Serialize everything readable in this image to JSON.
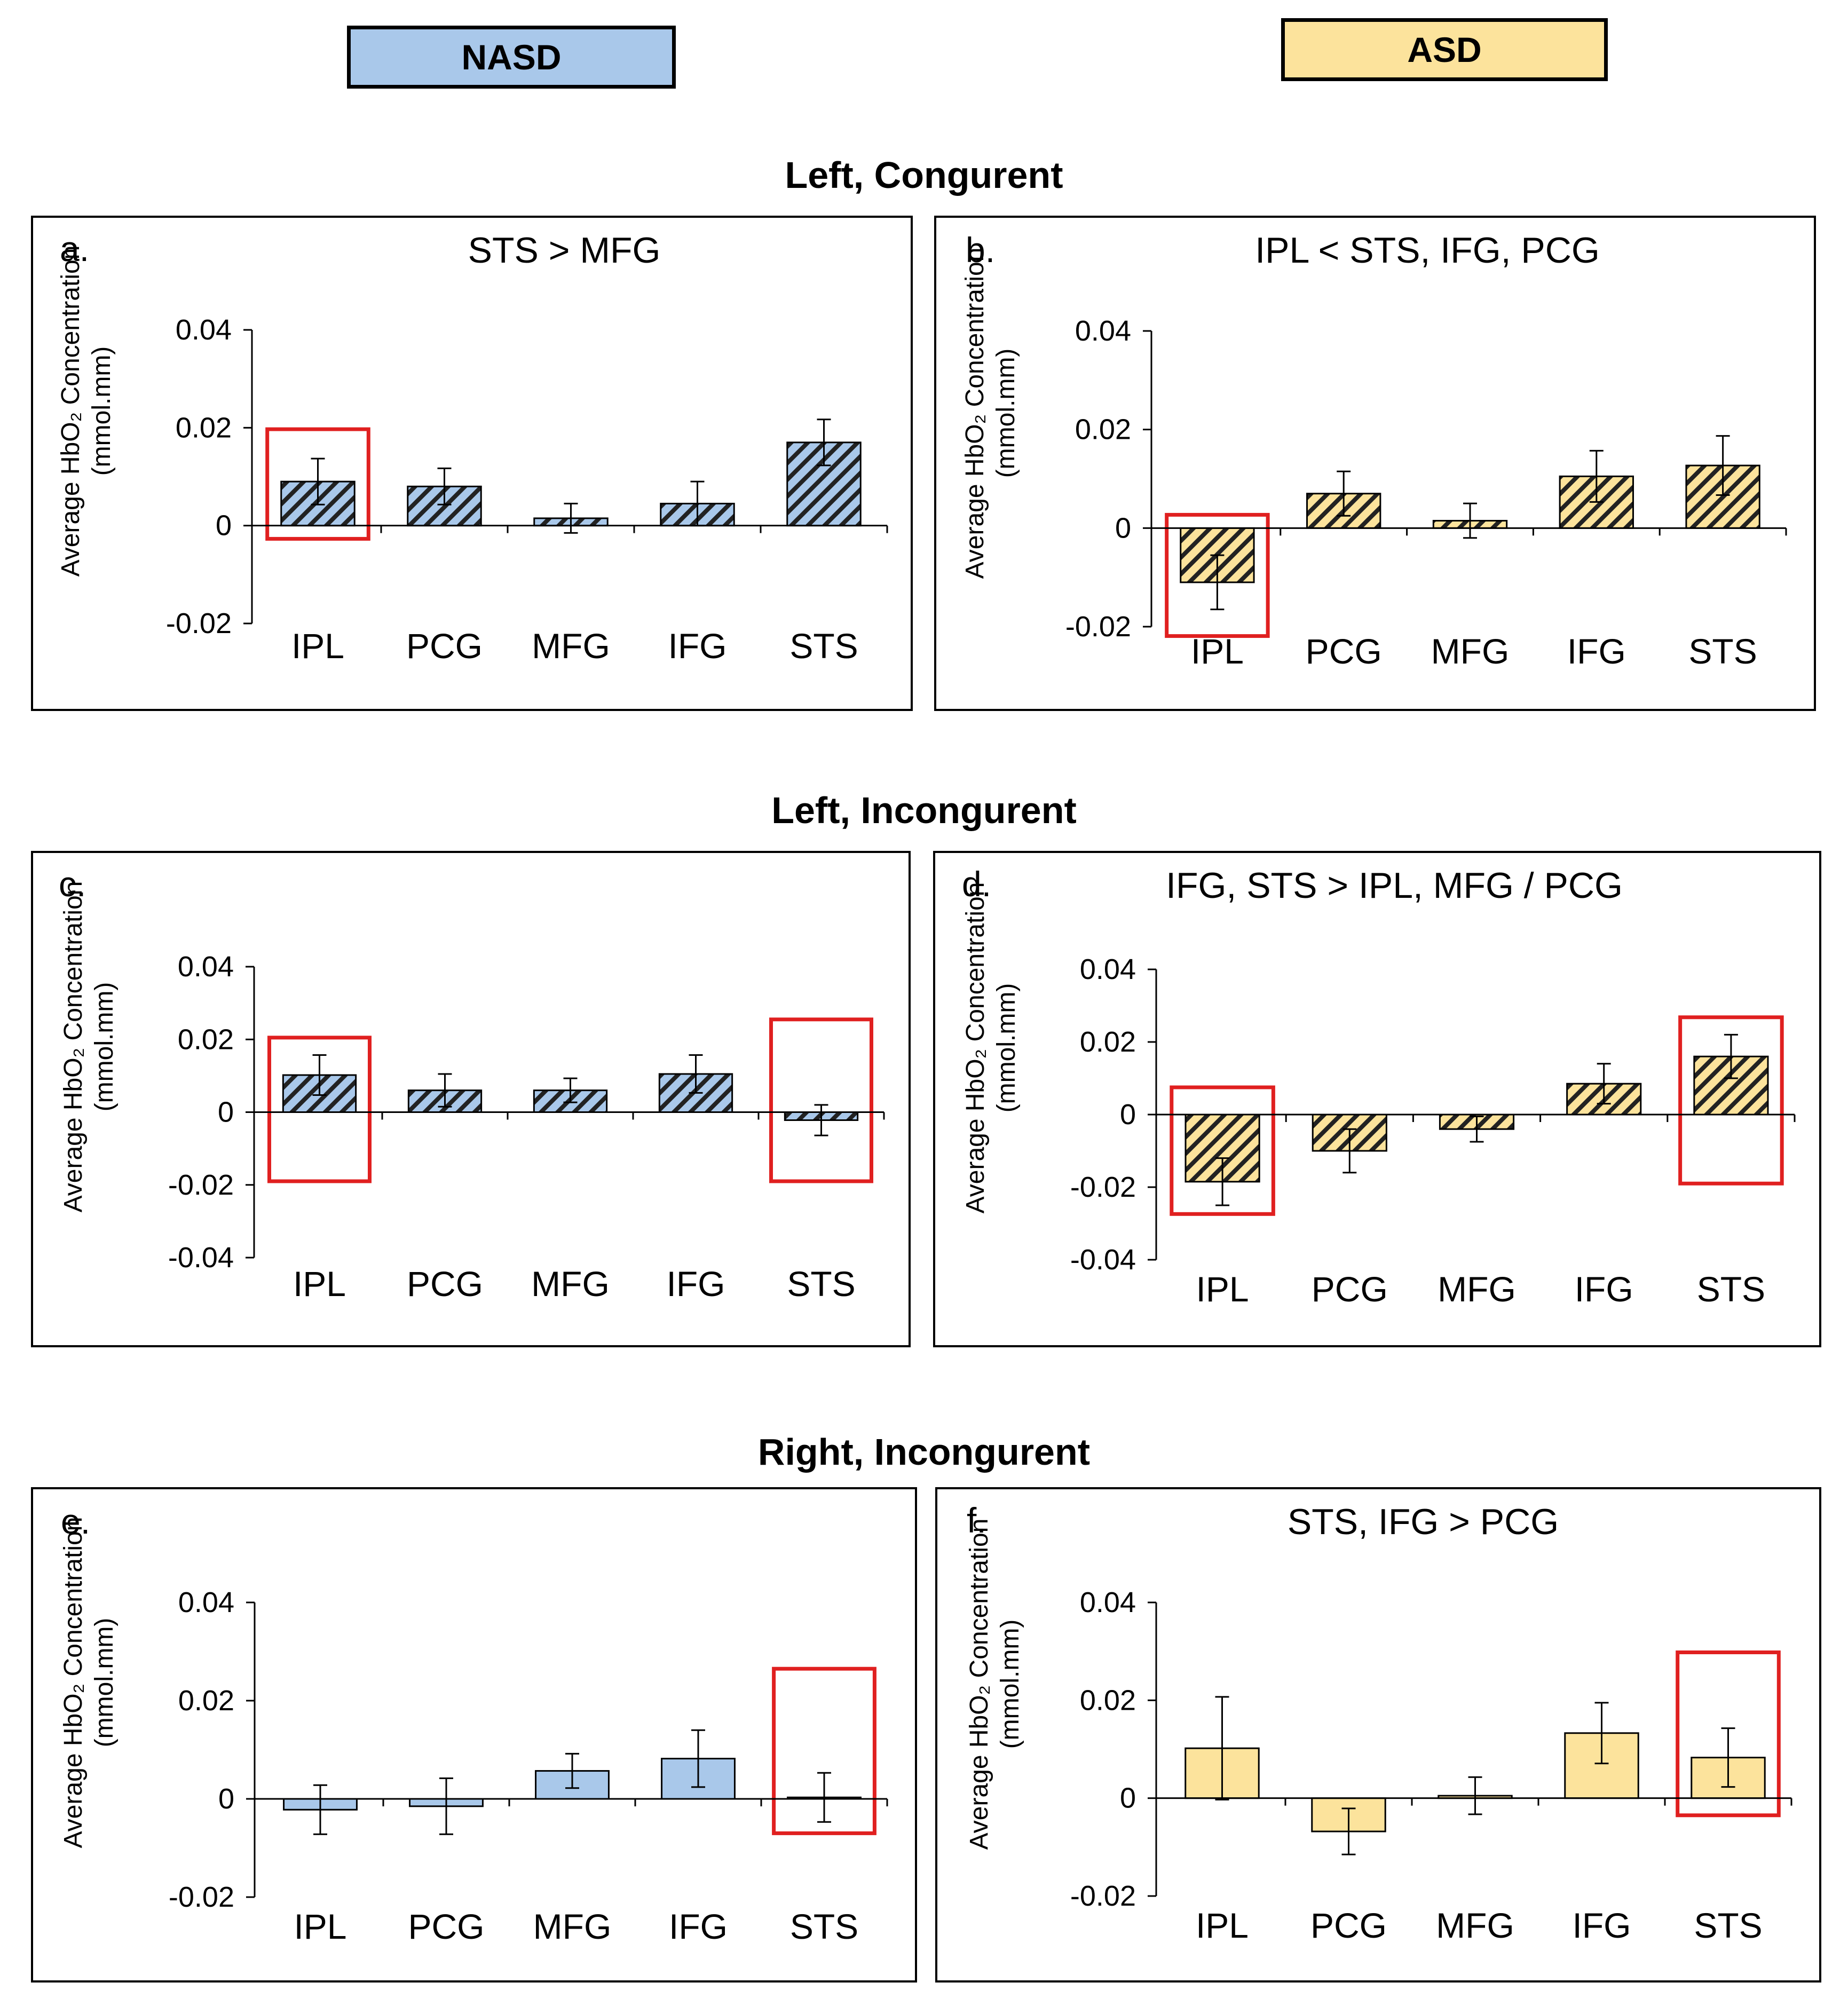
{
  "legend": {
    "nasd": {
      "label": "NASD",
      "color": "#a9c8ea"
    },
    "asd": {
      "label": "ASD",
      "color": "#fce39c"
    }
  },
  "sections": [
    {
      "title": "Left, Congurent"
    },
    {
      "title": "Left, Incongurent"
    },
    {
      "title": "Right, Incongurent"
    }
  ],
  "y_axis_label": {
    "line1": "Average HbO₂ Concentration",
    "line2": "(mmol.mm)"
  },
  "colors": {
    "highlight": "#e02020",
    "axis": "#000000",
    "hatch": "#222222"
  },
  "chart_data": [
    {
      "type": "bar",
      "panel": "a.",
      "title": "STS > MFG",
      "group": "NASD",
      "hatched": true,
      "categories": [
        "IPL",
        "PCG",
        "MFG",
        "IFG",
        "STS"
      ],
      "values": [
        0.009,
        0.008,
        0.0015,
        0.0045,
        0.017
      ],
      "errors": [
        0.0047,
        0.0037,
        0.003,
        0.0045,
        0.0047
      ],
      "ylim": [
        -0.02,
        0.04
      ],
      "yticks": [
        -0.02,
        0,
        0.02,
        0.04
      ],
      "ytick_labels": [
        "-0.02",
        "0",
        "0.02",
        "0.04"
      ],
      "highlighted": [
        "IPL"
      ]
    },
    {
      "type": "bar",
      "panel": "b.",
      "title": "IPL < STS, IFG, PCG",
      "group": "ASD",
      "hatched": true,
      "categories": [
        "IPL",
        "PCG",
        "MFG",
        "IFG",
        "STS"
      ],
      "values": [
        -0.011,
        0.007,
        0.0015,
        0.0105,
        0.0127
      ],
      "errors": [
        0.0055,
        0.0045,
        0.0035,
        0.0052,
        0.006
      ],
      "ylim": [
        -0.02,
        0.04
      ],
      "yticks": [
        -0.02,
        0,
        0.02,
        0.04
      ],
      "ytick_labels": [
        "-0.02",
        "0",
        "0.02",
        "0.04"
      ],
      "highlighted": [
        "IPL"
      ]
    },
    {
      "type": "bar",
      "panel": "c.",
      "title": "",
      "group": "NASD",
      "hatched": true,
      "categories": [
        "IPL",
        "PCG",
        "MFG",
        "IFG",
        "STS"
      ],
      "values": [
        0.0102,
        0.006,
        0.006,
        0.0105,
        -0.0022
      ],
      "errors": [
        0.0055,
        0.0045,
        0.0033,
        0.0052,
        0.0042
      ],
      "ylim": [
        -0.04,
        0.04
      ],
      "yticks": [
        -0.04,
        -0.02,
        0,
        0.02,
        0.04
      ],
      "ytick_labels": [
        "-0.04",
        "-0.02",
        "0",
        "0.02",
        "0.04"
      ],
      "highlighted": [
        "IPL",
        "STS"
      ]
    },
    {
      "type": "bar",
      "panel": "d.",
      "title": "IFG, STS > IPL, MFG / PCG",
      "group": "ASD",
      "hatched": true,
      "categories": [
        "IPL",
        "PCG",
        "MFG",
        "IFG",
        "STS"
      ],
      "values": [
        -0.0185,
        -0.01,
        -0.004,
        0.0085,
        0.016
      ],
      "errors": [
        0.0065,
        0.006,
        0.0035,
        0.0055,
        0.006
      ],
      "ylim": [
        -0.04,
        0.04
      ],
      "yticks": [
        -0.04,
        -0.02,
        0,
        0.02,
        0.04
      ],
      "ytick_labels": [
        "-0.04",
        "-0.02",
        "0",
        "0.02",
        "0.04"
      ],
      "highlighted": [
        "IPL",
        "STS"
      ]
    },
    {
      "type": "bar",
      "panel": "e.",
      "title": "",
      "group": "NASD",
      "hatched": false,
      "categories": [
        "IPL",
        "PCG",
        "MFG",
        "IFG",
        "STS"
      ],
      "values": [
        -0.0022,
        -0.0015,
        0.0057,
        0.0082,
        0.0003
      ],
      "errors": [
        0.005,
        0.0057,
        0.0035,
        0.0058,
        0.005
      ],
      "ylim": [
        -0.02,
        0.04
      ],
      "yticks": [
        -0.02,
        0,
        0.02,
        0.04
      ],
      "ytick_labels": [
        "-0.02",
        "0",
        "0.02",
        "0.04"
      ],
      "highlighted": [
        "STS"
      ]
    },
    {
      "type": "bar",
      "panel": "f.",
      "title": "STS, IFG > PCG",
      "group": "ASD",
      "hatched": false,
      "categories": [
        "IPL",
        "PCG",
        "MFG",
        "IFG",
        "STS"
      ],
      "values": [
        0.0102,
        -0.0068,
        0.0005,
        0.0133,
        0.0083
      ],
      "errors": [
        0.0105,
        0.0047,
        0.0038,
        0.0062,
        0.006
      ],
      "ylim": [
        -0.02,
        0.04
      ],
      "yticks": [
        -0.02,
        0,
        0.02,
        0.04
      ],
      "ytick_labels": [
        "-0.02",
        "0",
        "0.02",
        "0.04"
      ],
      "highlighted": [
        "STS"
      ]
    }
  ]
}
